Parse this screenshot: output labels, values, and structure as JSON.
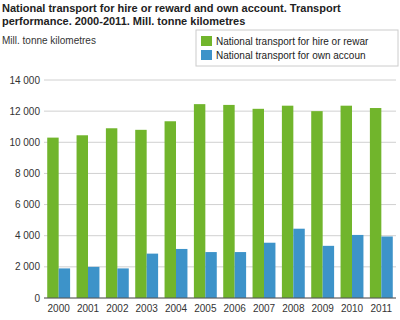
{
  "chart_data": {
    "type": "bar",
    "title": "National transport for hire or reward and own account. Transport performance. 2000-2011. Mill. tonne kilometres",
    "y_label": "Mill. tonne kilometres",
    "categories": [
      "2000",
      "2001",
      "2002",
      "2003",
      "2004",
      "2005",
      "2006",
      "2007",
      "2008",
      "2009",
      "2010",
      "2011"
    ],
    "series": [
      {
        "name": "National transport for hire or rewar",
        "color": "#71b52c",
        "values": [
          10300,
          10450,
          10900,
          10800,
          11350,
          12450,
          12400,
          12150,
          12350,
          12000,
          12350,
          12200
        ]
      },
      {
        "name": "National transport for own accoun",
        "color": "#3d93c9",
        "values": [
          1900,
          2000,
          1900,
          2850,
          3150,
          2950,
          2950,
          3550,
          4450,
          3350,
          4050,
          3950
        ]
      }
    ],
    "ylim": [
      0,
      14000
    ],
    "yticks": [
      0,
      {
        "value": 2000,
        "label": "2 000"
      },
      {
        "value": 4000,
        "label": "4 000"
      },
      {
        "value": 6000,
        "label": "6 000"
      },
      {
        "value": 8000,
        "label": "8 000"
      },
      {
        "value": 10000,
        "label": "10 000"
      },
      {
        "value": 12000,
        "label": "12 000"
      },
      {
        "value": 14000,
        "label": "14 000"
      }
    ],
    "grid": true,
    "legend": "upper right"
  }
}
